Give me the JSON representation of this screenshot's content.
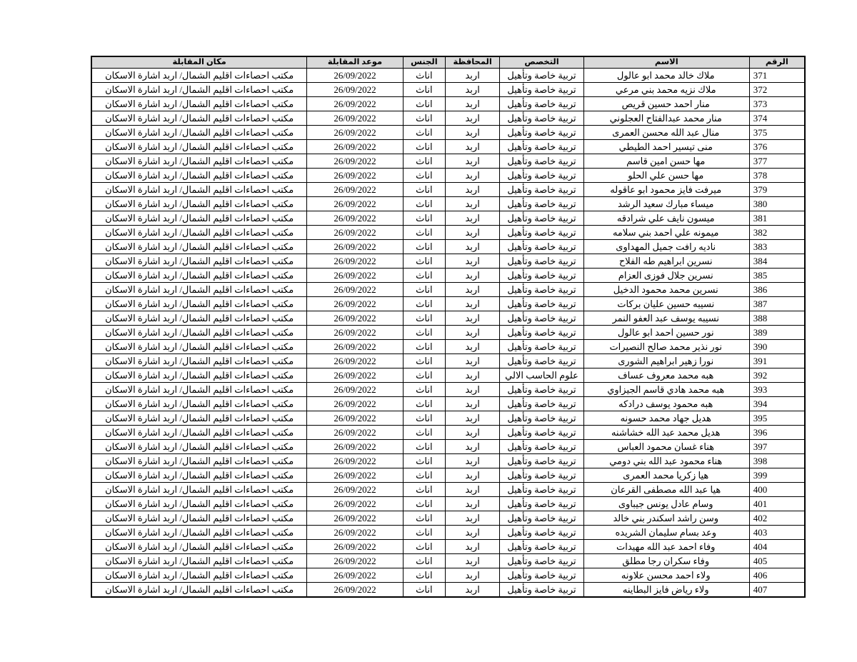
{
  "colors": {
    "page_background": "#ffffff",
    "header_background": "#d9d9d9",
    "border": "#000000",
    "text": "#000000"
  },
  "table": {
    "headers": {
      "num": "الرقم",
      "name": "الاسم",
      "specialization": "التخصص",
      "governorate": "المحافظة",
      "gender": "الجنس",
      "interview_date": "موعد المقابلة",
      "interview_location": "مكان المقابلة"
    },
    "row_defaults": {
      "specialization": "تربية خاصة وتأهيل",
      "governorate": "اربد",
      "gender": "اناث",
      "interview_date": "26/09/2022",
      "interview_location": "مكتب احصاءات اقليم الشمال/ اربد اشارة الاسكان"
    },
    "rows": [
      {
        "num": "371",
        "name": "ملاك خالد محمد ابو عالول"
      },
      {
        "num": "372",
        "name": "ملاك نزيه محمد بني مرعي"
      },
      {
        "num": "373",
        "name": "منار احمد حسين قريص"
      },
      {
        "num": "374",
        "name": "منار محمد عبدالفتاح العجلوني"
      },
      {
        "num": "375",
        "name": "منال عبد الله محسن العمرى"
      },
      {
        "num": "376",
        "name": "منى تيسير احمد الطيطي"
      },
      {
        "num": "377",
        "name": "مها حسن امين قاسم"
      },
      {
        "num": "378",
        "name": "مها حسن علي الحلو"
      },
      {
        "num": "379",
        "name": "ميرفت فايز محمود ابو عاقوله"
      },
      {
        "num": "380",
        "name": "ميساء مبارك سعيد الرشد"
      },
      {
        "num": "381",
        "name": "ميسون نايف علي شرادقه"
      },
      {
        "num": "382",
        "name": "ميمونه علي احمد بني سلامه"
      },
      {
        "num": "383",
        "name": "ناديه رافت جميل المهداوى"
      },
      {
        "num": "384",
        "name": "نسرين ابراهيم طه الفلاح"
      },
      {
        "num": "385",
        "name": "نسرين جلال فوزى العزام"
      },
      {
        "num": "386",
        "name": "نسرين محمد محمود الدخيل"
      },
      {
        "num": "387",
        "name": "نسيبه حسين عليان بركات"
      },
      {
        "num": "388",
        "name": "نسيبه يوسف عبد العفو النمر"
      },
      {
        "num": "389",
        "name": "نور حسين احمد ابو عالول"
      },
      {
        "num": "390",
        "name": "نور نذير محمد صالح النصيرات"
      },
      {
        "num": "391",
        "name": "نورا زهير ابراهيم الشورى"
      },
      {
        "num": "392",
        "name": "هبه محمد معروف عساف",
        "specialization": "علوم الحاسب الالي"
      },
      {
        "num": "393",
        "name": "هبه محمد هادي قاسم الجيزاوي"
      },
      {
        "num": "394",
        "name": "هبه محمود يوسف درادكه"
      },
      {
        "num": "395",
        "name": "هديل جهاد محمد حسونه"
      },
      {
        "num": "396",
        "name": "هديل محمد عبد الله خشاشنه"
      },
      {
        "num": "397",
        "name": "هناء غسان محمود العباس"
      },
      {
        "num": "398",
        "name": "هناء محمود عبد الله بني دومي"
      },
      {
        "num": "399",
        "name": "هيا زكريا محمد العمرى"
      },
      {
        "num": "400",
        "name": "هيا عبد الله مصطفى القرعان"
      },
      {
        "num": "401",
        "name": "وسام عادل يونس جيباوى"
      },
      {
        "num": "402",
        "name": "وسن راشد اسكندر بني خالد"
      },
      {
        "num": "403",
        "name": "وعد بسام سليمان الشريده"
      },
      {
        "num": "404",
        "name": "وفاء احمد عبد الله مهيدات"
      },
      {
        "num": "405",
        "name": "وفاء سكران رجا مطلق"
      },
      {
        "num": "406",
        "name": "ولاء احمد محسن علاونه"
      },
      {
        "num": "407",
        "name": "ولاء رياض فايز البطاينه"
      }
    ]
  }
}
